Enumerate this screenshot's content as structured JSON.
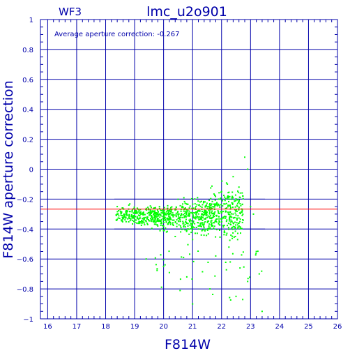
{
  "header": {
    "chip": "WF3",
    "title": "lmc_u2o901"
  },
  "annotation": "Average aperture correction: -0.267",
  "colors": {
    "axes": "#0000aa",
    "points": "#00ff00",
    "mean_line": "#ff0000",
    "background": "#ffffff"
  },
  "chart_data": {
    "type": "scatter",
    "title": "lmc_u2o901",
    "subtitle": "WF3",
    "xlabel": "F814W",
    "ylabel": "F814W aperture correction",
    "xlim": [
      15.75,
      26
    ],
    "ylim": [
      -1,
      1
    ],
    "x_ticks": [
      16,
      17,
      18,
      19,
      20,
      21,
      22,
      23,
      24,
      25,
      26
    ],
    "y_ticks": [
      -1,
      -0.8,
      -0.6,
      -0.4,
      -0.2,
      0,
      0.2,
      0.4,
      0.6,
      0.8,
      1
    ],
    "x_tick_labels": [
      "16",
      "17",
      "18",
      "19",
      "20",
      "21",
      "22",
      "23",
      "24",
      "25",
      "26"
    ],
    "y_tick_labels": [
      "−1",
      "−0.8",
      "−0.6",
      "−0.4",
      "−0.2",
      "0",
      "0.2",
      "0.4",
      "0.6",
      "0.8",
      "1"
    ],
    "grid": true,
    "mean_line": -0.267,
    "reference_lines": [
      -0.2,
      -0.4
    ],
    "points_description": "approx. 1000 stars, F814W 18.3–23.4, aperture correction mostly −0.2 to −0.5",
    "points": [
      [
        18.4,
        -0.25
      ],
      [
        18.5,
        -0.27
      ],
      [
        18.6,
        -0.26
      ],
      [
        18.7,
        -0.29
      ],
      [
        18.8,
        -0.24
      ],
      [
        18.9,
        -0.31
      ],
      [
        19.0,
        -0.28
      ],
      [
        19.1,
        -0.33
      ],
      [
        19.2,
        -0.27
      ],
      [
        19.3,
        -0.3
      ],
      [
        19.4,
        -0.35
      ],
      [
        19.5,
        -0.29
      ],
      [
        19.6,
        -0.32
      ],
      [
        19.7,
        -0.26
      ],
      [
        19.8,
        -0.38
      ],
      [
        19.9,
        -0.31
      ],
      [
        20.0,
        -0.34
      ],
      [
        20.1,
        -0.42
      ],
      [
        20.2,
        -0.3
      ],
      [
        20.3,
        -0.36
      ],
      [
        20.4,
        -0.45
      ],
      [
        20.5,
        -0.33
      ],
      [
        20.6,
        -0.39
      ],
      [
        20.7,
        -0.28
      ],
      [
        20.8,
        -0.41
      ],
      [
        20.9,
        -0.35
      ],
      [
        21.0,
        -0.47
      ],
      [
        21.1,
        -0.32
      ],
      [
        21.2,
        -0.38
      ],
      [
        21.3,
        -0.44
      ],
      [
        21.4,
        -0.36
      ],
      [
        21.5,
        -0.29
      ],
      [
        21.6,
        -0.4
      ],
      [
        21.7,
        -0.25
      ],
      [
        21.8,
        -0.34
      ],
      [
        21.9,
        -0.2
      ],
      [
        22.0,
        -0.15
      ],
      [
        22.2,
        -0.1
      ],
      [
        22.4,
        -0.05
      ],
      [
        22.6,
        -0.12
      ],
      [
        22.8,
        0.08
      ],
      [
        22.9,
        0.0
      ],
      [
        23.0,
        -0.25
      ],
      [
        23.1,
        -0.3
      ],
      [
        23.2,
        -0.55
      ],
      [
        23.3,
        -0.7
      ],
      [
        23.4,
        -0.95
      ],
      [
        21.0,
        -0.9
      ],
      [
        22.5,
        -0.85
      ],
      [
        20.0,
        -0.65
      ],
      [
        19.4,
        -0.6
      ],
      [
        21.8,
        -0.58
      ],
      [
        22.3,
        -0.62
      ],
      [
        20.8,
        -0.72
      ],
      [
        21.6,
        -0.8
      ],
      [
        22.9,
        -0.75
      ]
    ]
  }
}
